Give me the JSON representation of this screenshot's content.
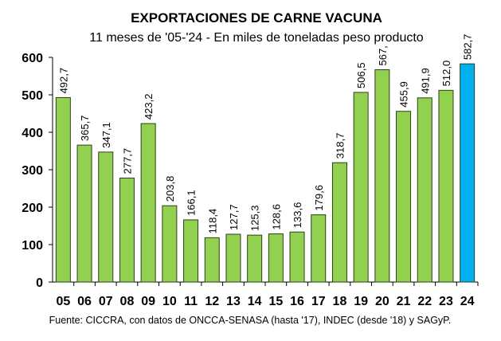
{
  "chart_data": {
    "type": "bar",
    "title": "EXPORTACIONES DE CARNE VACUNA",
    "subtitle": "11 meses de '05-'24 - En miles de toneladas peso producto",
    "categories": [
      "05",
      "06",
      "07",
      "08",
      "09",
      "10",
      "11",
      "12",
      "13",
      "14",
      "15",
      "16",
      "17",
      "18",
      "19",
      "20",
      "21",
      "22",
      "23",
      "24"
    ],
    "values": [
      492.7,
      365.7,
      347.1,
      277.7,
      423.2,
      203.8,
      166.1,
      118.4,
      127.7,
      125.3,
      128.6,
      133.6,
      179.6,
      318.7,
      506.5,
      567,
      455.9,
      491.9,
      512.0,
      582.7
    ],
    "labels": [
      "492,7",
      "365,7",
      "347,1",
      "277,7",
      "423,2",
      "203,8",
      "166,1",
      "118,4",
      "127,7",
      "125,3",
      "128,6",
      "133,6",
      "179,6",
      "318,7",
      "506,5",
      "567,",
      "455,9",
      "491,9",
      "512,0",
      "582,7"
    ],
    "ylim": [
      0,
      600
    ],
    "yticks": [
      "0",
      "100",
      "200",
      "300",
      "400",
      "500",
      "600"
    ],
    "grid": false,
    "colors": {
      "default": "#92D050",
      "highlight": "#00B0F0",
      "outline": "#2F3F1A"
    },
    "highlight_index": 19,
    "footer": "Fuente: CICCRA, con datos de ONCCA-SENASA (hasta '17), INDEC (desde '18) y SAGyP."
  }
}
